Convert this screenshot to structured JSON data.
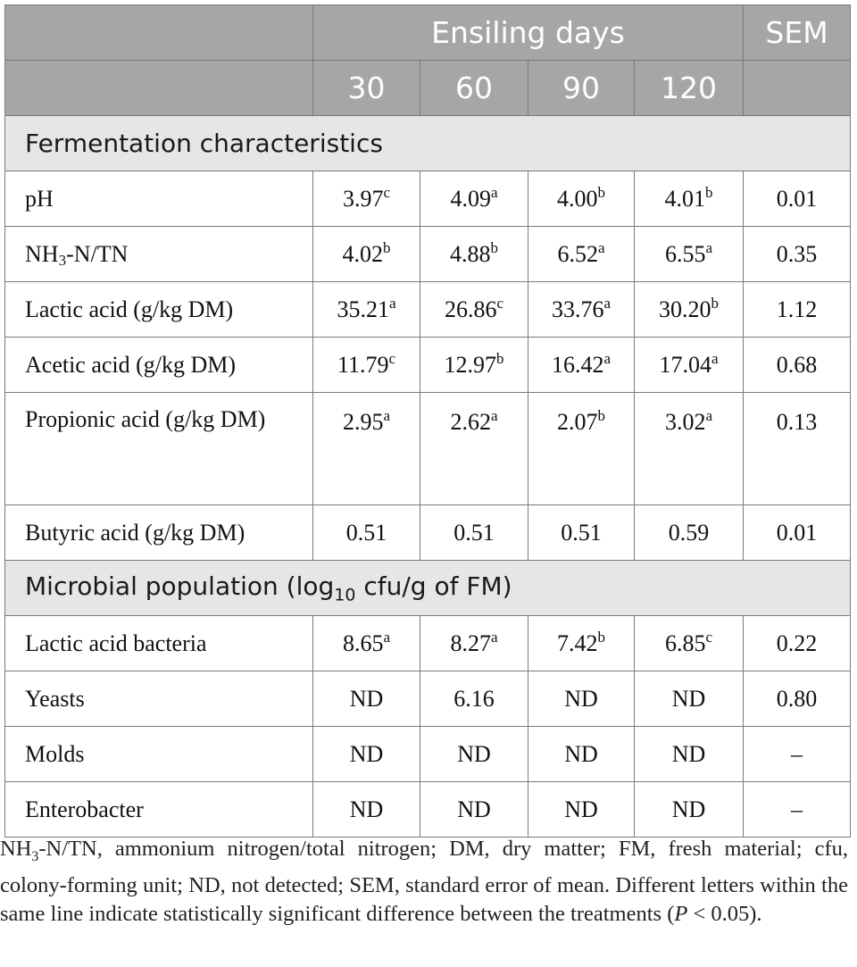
{
  "header": {
    "group_label": "Ensiling days",
    "sem_label": "SEM",
    "days": [
      "30",
      "60",
      "90",
      "120"
    ]
  },
  "sections": {
    "fermentation": "Fermentation characteristics",
    "microbial_prefix": "Microbial population (log",
    "microbial_sub": "10",
    "microbial_suffix": " cfu/g of FM)"
  },
  "rows": {
    "ph": {
      "label": "pH",
      "v": [
        "3.97",
        "4.09",
        "4.00",
        "4.01"
      ],
      "s": [
        "c",
        "a",
        "b",
        "b"
      ],
      "sem": "0.01"
    },
    "nh3": {
      "label_pre": "NH",
      "label_sub": "3",
      "label_post": "-N/TN",
      "v": [
        "4.02",
        "4.88",
        "6.52",
        "6.55"
      ],
      "s": [
        "b",
        "b",
        "a",
        "a"
      ],
      "sem": "0.35"
    },
    "lactic": {
      "label": "Lactic acid (g/kg DM)",
      "v": [
        "35.21",
        "26.86",
        "33.76",
        "30.20"
      ],
      "s": [
        "a",
        "c",
        "a",
        "b"
      ],
      "sem": "1.12"
    },
    "acetic": {
      "label": "Acetic acid (g/kg DM)",
      "v": [
        "11.79",
        "12.97",
        "16.42",
        "17.04"
      ],
      "s": [
        "c",
        "b",
        "a",
        "a"
      ],
      "sem": "0.68"
    },
    "propionic": {
      "label": "Propionic acid (g/kg DM)",
      "v": [
        "2.95",
        "2.62",
        "2.07",
        "3.02"
      ],
      "s": [
        "a",
        "a",
        "b",
        "a"
      ],
      "sem": "0.13"
    },
    "butyric": {
      "label": "Butyric acid (g/kg DM)",
      "v": [
        "0.51",
        "0.51",
        "0.51",
        "0.59"
      ],
      "sem": "0.01"
    },
    "lab": {
      "label": "Lactic acid bacteria",
      "v": [
        "8.65",
        "8.27",
        "7.42",
        "6.85"
      ],
      "s": [
        "a",
        "a",
        "b",
        "c"
      ],
      "sem": "0.22"
    },
    "yeasts": {
      "label": "Yeasts",
      "v": [
        "ND",
        "6.16",
        "ND",
        "ND"
      ],
      "sem": "0.80"
    },
    "molds": {
      "label": "Molds",
      "v": [
        "ND",
        "ND",
        "ND",
        "ND"
      ],
      "sem": "–"
    },
    "entero": {
      "label": "Enterobacter",
      "v": [
        "ND",
        "ND",
        "ND",
        "ND"
      ],
      "sem": "–"
    }
  },
  "footnote": {
    "pre": "NH",
    "sub": "3",
    "text": "-N/TN, ammonium nitrogen/total nitrogen; DM, dry matter; FM, fresh material; cfu, colony-forming unit; ND, not detected; SEM, standard error of mean. Different letters within the same line indicate statistically significant difference between the treatments (",
    "p": "P",
    "tail": " < 0.05)."
  }
}
